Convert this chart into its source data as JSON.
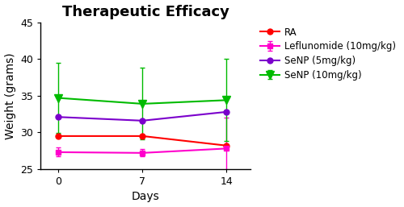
{
  "title": "Therapeutic Efficacy",
  "xlabel": "Days",
  "ylabel": "Weight (grams)",
  "x": [
    0,
    7,
    14
  ],
  "series": [
    {
      "label": "RA",
      "color": "#FF0000",
      "marker": "o",
      "y": [
        29.5,
        29.5,
        28.2
      ],
      "yerr": [
        0.0,
        0.0,
        0.0
      ]
    },
    {
      "label": "Leflunomide (10mg/kg)",
      "color": "#FF00CC",
      "marker": "s",
      "y": [
        27.3,
        27.2,
        27.8
      ],
      "yerr": [
        0.6,
        0.5,
        4.2
      ]
    },
    {
      "label": "SeNP (5mg/kg)",
      "color": "#7B00CC",
      "marker": "o",
      "y": [
        32.1,
        31.6,
        32.8
      ],
      "yerr": [
        0.0,
        0.0,
        0.0
      ]
    },
    {
      "label": "SeNP (10mg/kg)",
      "color": "#00BB00",
      "marker": "v",
      "y": [
        34.7,
        33.9,
        34.4
      ],
      "yerr": [
        4.8,
        4.9,
        5.6
      ]
    }
  ],
  "ylim": [
    25,
    45
  ],
  "yticks": [
    25,
    30,
    35,
    40,
    45
  ],
  "xlim": [
    -1.5,
    16
  ],
  "xticks": [
    0,
    7,
    14
  ],
  "title_fontsize": 13,
  "axis_label_fontsize": 10,
  "tick_fontsize": 9,
  "legend_fontsize": 8.5,
  "background_color": "#ffffff",
  "figsize": [
    5.0,
    2.57
  ],
  "dpi": 100
}
